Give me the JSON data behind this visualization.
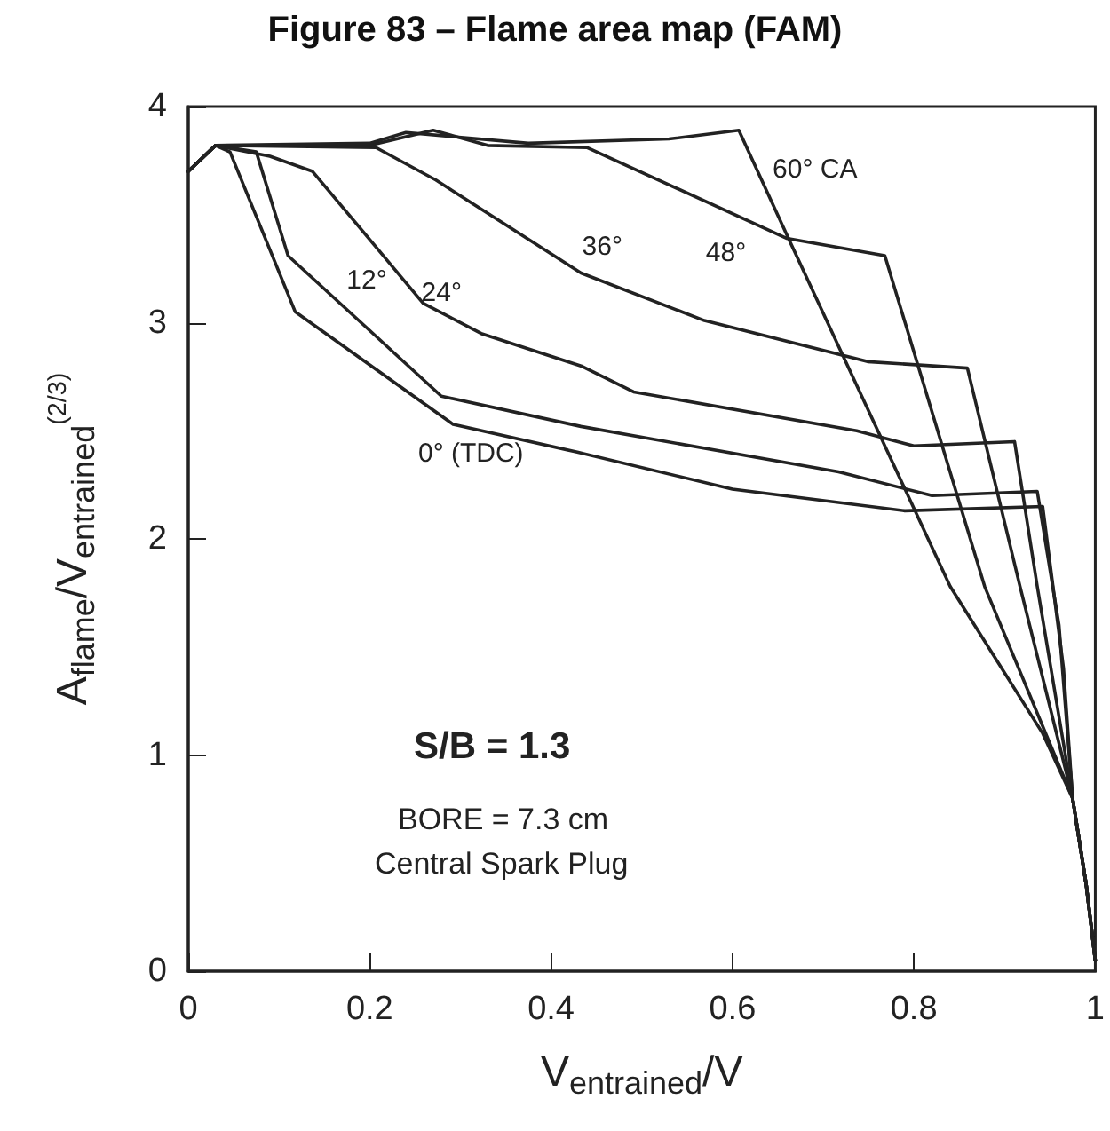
{
  "chart_data": {
    "type": "line",
    "title": "Figure 83 – Flame area map (FAM)",
    "xlabel": "V$_{entrained}$/V",
    "ylabel": "A$_{flame}$/V$_{entrained}$$^{(2/3)}$",
    "xlim": [
      0,
      1
    ],
    "xticks": [
      0,
      0.2,
      0.4,
      0.6,
      0.8,
      1
    ],
    "ylim": [
      0,
      4
    ],
    "yticks": [
      0,
      1,
      2,
      3,
      4
    ],
    "grid": false,
    "legend": false,
    "marker": "none",
    "line_style": "solid",
    "annotations": [
      "S/B = 1.3",
      "BORE = 7.3 cm",
      "Central Spark Plug"
    ],
    "series": [
      {
        "name": "0° (TDC)",
        "color": "#222222",
        "x": [
          0,
          0.03,
          0.046,
          0.118,
          0.292,
          0.43,
          0.6,
          0.79,
          0.942,
          0.965,
          0.975,
          0.99,
          1
        ],
        "values": [
          3.7,
          3.82,
          3.79,
          3.05,
          2.53,
          2.4,
          2.23,
          2.13,
          2.15,
          1.4,
          0.8,
          0.4,
          0.05
        ]
      },
      {
        "name": "12°",
        "color": "#222222",
        "x": [
          0,
          0.03,
          0.075,
          0.11,
          0.279,
          0.433,
          0.717,
          0.82,
          0.936,
          0.96,
          0.975,
          0.99,
          1
        ],
        "values": [
          3.7,
          3.82,
          3.79,
          3.31,
          2.66,
          2.52,
          2.31,
          2.2,
          2.22,
          1.6,
          0.8,
          0.4,
          0.05
        ]
      },
      {
        "name": "24°",
        "color": "#222222",
        "x": [
          0,
          0.03,
          0.09,
          0.137,
          0.259,
          0.323,
          0.433,
          0.491,
          0.737,
          0.8,
          0.911,
          0.936,
          0.975,
          0.99,
          1
        ],
        "values": [
          3.7,
          3.82,
          3.77,
          3.7,
          3.09,
          2.95,
          2.8,
          2.68,
          2.5,
          2.43,
          2.45,
          1.78,
          0.8,
          0.4,
          0.05
        ]
      },
      {
        "name": "36°",
        "color": "#222222",
        "x": [
          0,
          0.03,
          0.207,
          0.273,
          0.433,
          0.569,
          0.749,
          0.859,
          0.917,
          0.975,
          0.99,
          1
        ],
        "values": [
          3.7,
          3.82,
          3.81,
          3.66,
          3.23,
          3.01,
          2.82,
          2.79,
          1.78,
          0.8,
          0.4,
          0.05
        ]
      },
      {
        "name": "48°",
        "color": "#222222",
        "x": [
          0,
          0.03,
          0.2,
          0.27,
          0.33,
          0.44,
          0.66,
          0.768,
          0.878,
          0.975,
          0.99,
          1
        ],
        "values": [
          3.7,
          3.82,
          3.82,
          3.89,
          3.82,
          3.81,
          3.39,
          3.31,
          1.78,
          0.8,
          0.4,
          0.05
        ]
      },
      {
        "name": "60° CA",
        "color": "#222222",
        "x": [
          0,
          0.03,
          0.2,
          0.24,
          0.375,
          0.53,
          0.607,
          0.665,
          0.84,
          0.942,
          0.975,
          0.99,
          1
        ],
        "values": [
          3.7,
          3.82,
          3.83,
          3.88,
          3.83,
          3.85,
          3.89,
          3.36,
          1.78,
          1.1,
          0.8,
          0.4,
          0.05
        ]
      }
    ]
  }
}
